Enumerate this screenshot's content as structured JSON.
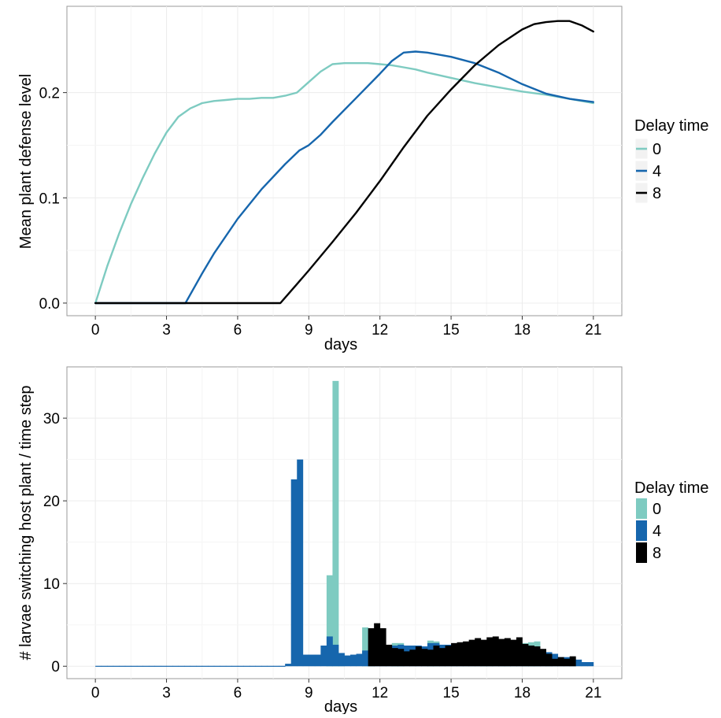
{
  "colors": {
    "delay_0": "#7ecbc1",
    "delay_4": "#1666ad",
    "delay_8": "#000000",
    "grid": "#ececec",
    "frame": "#9a9a9a"
  },
  "chart_data": [
    {
      "type": "line",
      "xlabel": "days",
      "ylabel": "Mean plant defense level",
      "xlim": [
        -1.2,
        22.2
      ],
      "ylim": [
        -0.012,
        0.282
      ],
      "x_ticks": [
        0,
        3,
        6,
        9,
        12,
        15,
        18,
        21
      ],
      "y_ticks": [
        0.0,
        0.1,
        0.2
      ],
      "y_tick_labels": [
        "0.0",
        "0.1",
        "0.2"
      ],
      "grid": true,
      "legend": {
        "title": "Delay time",
        "position": "right"
      },
      "series": [
        {
          "name": "0",
          "color": "#7ecbc1",
          "x": [
            0,
            0.5,
            1,
            1.5,
            2,
            2.5,
            3,
            3.5,
            4,
            4.5,
            5,
            5.5,
            6,
            6.5,
            7,
            7.5,
            8,
            8.5,
            9,
            9.5,
            10,
            10.5,
            11,
            11.5,
            12,
            12.5,
            13,
            13.5,
            14,
            15,
            16,
            17,
            18,
            19,
            20,
            21
          ],
          "y": [
            0.0,
            0.035,
            0.066,
            0.094,
            0.119,
            0.142,
            0.162,
            0.177,
            0.185,
            0.19,
            0.192,
            0.193,
            0.194,
            0.194,
            0.195,
            0.195,
            0.197,
            0.2,
            0.21,
            0.22,
            0.227,
            0.228,
            0.228,
            0.228,
            0.227,
            0.226,
            0.224,
            0.222,
            0.219,
            0.214,
            0.209,
            0.205,
            0.201,
            0.198,
            0.194,
            0.19
          ]
        },
        {
          "name": "4",
          "color": "#1666ad",
          "x": [
            0,
            3.8,
            4.5,
            5,
            6,
            7,
            8,
            8.6,
            9,
            9.5,
            10,
            11,
            12,
            12.5,
            13,
            13.5,
            14,
            15,
            16,
            17,
            18,
            19,
            20,
            21
          ],
          "y": [
            0.0,
            0.0,
            0.028,
            0.047,
            0.08,
            0.108,
            0.132,
            0.145,
            0.15,
            0.16,
            0.172,
            0.195,
            0.218,
            0.23,
            0.238,
            0.239,
            0.238,
            0.234,
            0.228,
            0.219,
            0.208,
            0.199,
            0.194,
            0.191
          ]
        },
        {
          "name": "8",
          "color": "#000000",
          "x": [
            0,
            7.8,
            8.5,
            9,
            10,
            11,
            12,
            13,
            14,
            15,
            16,
            17,
            18,
            18.5,
            19,
            19.5,
            20,
            20.5,
            21
          ],
          "y": [
            0.0,
            0.0,
            0.018,
            0.031,
            0.058,
            0.086,
            0.116,
            0.148,
            0.178,
            0.203,
            0.226,
            0.245,
            0.26,
            0.265,
            0.267,
            0.268,
            0.268,
            0.264,
            0.258
          ]
        }
      ]
    },
    {
      "type": "bar",
      "xlabel": "days",
      "ylabel": "# larvae switching host plant / time step",
      "xlim": [
        -1.2,
        22.2
      ],
      "ylim": [
        -1.5,
        36.2
      ],
      "x_ticks": [
        0,
        3,
        6,
        9,
        12,
        15,
        18,
        21
      ],
      "y_ticks": [
        0,
        10,
        20,
        30
      ],
      "grid": true,
      "legend": {
        "title": "Delay time",
        "position": "right"
      },
      "bin_width": 0.25,
      "series": [
        {
          "name": "0",
          "color": "#7ecbc1",
          "x": [
            9.875,
            10.125,
            10.375,
            11.375,
            11.625,
            12.625,
            12.875,
            14.125,
            14.375,
            16.375,
            16.625,
            17.125,
            17.375,
            18.125,
            18.375,
            18.625,
            19.125,
            20.125
          ],
          "values": [
            11.0,
            34.5,
            1.5,
            4.7,
            3.0,
            2.8,
            2.8,
            3.1,
            3.0,
            2.9,
            2.9,
            2.8,
            2.8,
            2.8,
            2.9,
            3.0,
            1.3,
            1.1
          ]
        },
        {
          "name": "4",
          "color": "#1666ad",
          "x": [
            0.125,
            0.375,
            0.625,
            0.875,
            1.125,
            1.375,
            1.625,
            1.875,
            2.125,
            2.375,
            2.625,
            2.875,
            3.125,
            3.375,
            3.625,
            3.875,
            4.125,
            4.375,
            4.625,
            4.875,
            5.125,
            5.375,
            5.625,
            5.875,
            6.125,
            6.375,
            6.625,
            6.875,
            7.125,
            7.375,
            7.625,
            7.875,
            8.125,
            8.375,
            8.625,
            8.875,
            9.125,
            9.375,
            9.625,
            9.875,
            10.125,
            10.375,
            10.625,
            10.875,
            11.125,
            11.375,
            11.625,
            11.875,
            12.125,
            12.375,
            12.625,
            12.875,
            13.125,
            13.375,
            13.625,
            13.875,
            14.125,
            14.375,
            14.625,
            14.875,
            15.125,
            15.375,
            15.625,
            15.875,
            16.125,
            16.375,
            16.625,
            16.875,
            17.125,
            17.375,
            17.625,
            17.875,
            18.125,
            18.375,
            18.625,
            18.875,
            19.125,
            19.375,
            19.625,
            19.875,
            20.125,
            20.375,
            20.625,
            20.875
          ],
          "values": [
            0.05,
            0.05,
            0.05,
            0.05,
            0.05,
            0.05,
            0.05,
            0.05,
            0.05,
            0.05,
            0.05,
            0.05,
            0.05,
            0.05,
            0.05,
            0.05,
            0.05,
            0.05,
            0.05,
            0.05,
            0.05,
            0.05,
            0.05,
            0.05,
            0.05,
            0.05,
            0.05,
            0.05,
            0.05,
            0.05,
            0.05,
            0.05,
            0.3,
            22.6,
            25.0,
            1.4,
            1.4,
            1.4,
            2.5,
            3.6,
            2.6,
            1.6,
            1.3,
            1.4,
            1.5,
            1.9,
            2.0,
            2.0,
            2.2,
            2.5,
            2.5,
            2.6,
            2.5,
            2.5,
            2.5,
            2.4,
            2.8,
            2.8,
            2.6,
            2.6,
            2.5,
            2.6,
            2.5,
            2.5,
            2.4,
            2.5,
            2.3,
            2.3,
            2.5,
            2.5,
            2.4,
            2.2,
            2.0,
            2.2,
            1.8,
            1.5,
            1.7,
            1.5,
            1.1,
            1.1,
            0.9,
            0.8,
            0.5,
            0.5
          ]
        },
        {
          "name": "8",
          "color": "#000000",
          "x": [
            11.625,
            11.875,
            12.125,
            12.375,
            12.625,
            12.875,
            13.125,
            13.375,
            13.625,
            13.875,
            14.125,
            14.375,
            14.625,
            14.875,
            15.125,
            15.375,
            15.625,
            15.875,
            16.125,
            16.375,
            16.625,
            16.875,
            17.125,
            17.375,
            17.625,
            17.875,
            18.125,
            18.375,
            18.625,
            18.875,
            19.125,
            19.375,
            19.625,
            19.875,
            20.125
          ],
          "values": [
            4.6,
            5.2,
            4.6,
            2.6,
            2.2,
            2.1,
            1.8,
            2.0,
            2.4,
            2.1,
            2.0,
            2.5,
            2.2,
            2.5,
            2.8,
            2.9,
            3.0,
            3.2,
            3.4,
            3.2,
            3.5,
            3.6,
            3.3,
            3.4,
            3.2,
            3.5,
            2.7,
            2.5,
            2.4,
            2.1,
            1.5,
            0.9,
            1.1,
            0.9,
            1.2
          ]
        }
      ]
    }
  ]
}
